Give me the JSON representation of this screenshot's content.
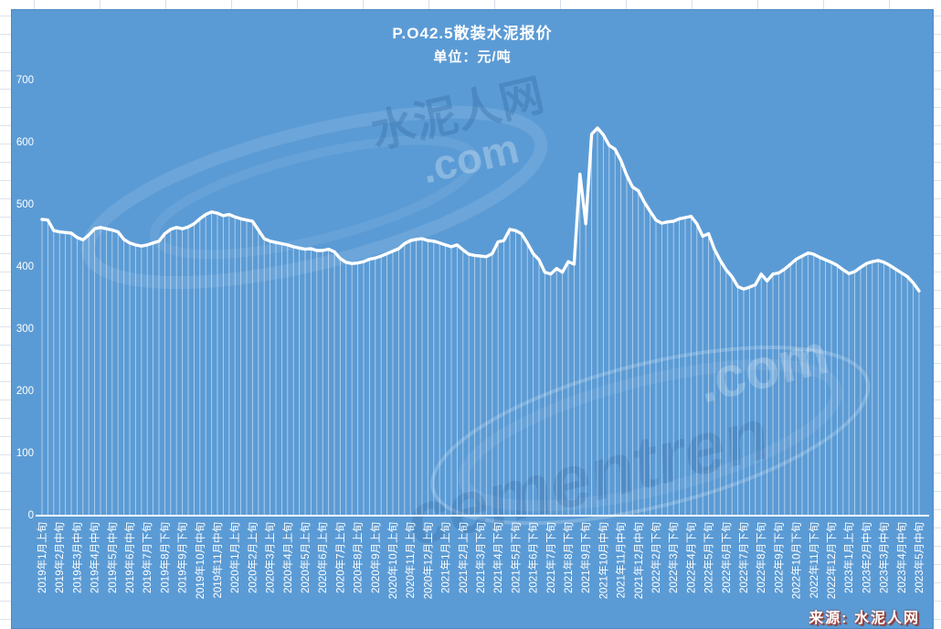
{
  "source_note": "来源: 水泥人网",
  "watermarks": {
    "upper_cn": "水泥人网",
    "upper_com": ".com",
    "lower_latin": "cementren",
    "lower_com": ".com"
  },
  "chart_data": {
    "type": "line",
    "title": "P.O42.5散装水泥报价",
    "subtitle": "单位：元/吨",
    "ylabel": "元/吨",
    "ylim": [
      0,
      700
    ],
    "yticks": [
      0,
      100,
      200,
      300,
      400,
      500,
      600,
      700
    ],
    "grid": false,
    "legend_position": "none",
    "x_label_every_n_points": 3,
    "x_tick_labels": [
      "2019年1月上旬",
      "2019年2月中旬",
      "2019年3月中旬",
      "2019年4月中旬",
      "2019年5月中旬",
      "2019年6月中旬",
      "2019年7月下旬",
      "2019年8月下旬",
      "2019年9月下旬",
      "2019年10月中旬",
      "2019年11月中旬",
      "2020年1月上旬",
      "2020年2月上旬",
      "2020年3月上旬",
      "2020年4月上旬",
      "2020年5月上旬",
      "2020年6月上旬",
      "2020年7月上旬",
      "2020年8月上旬",
      "2020年9月上旬",
      "2020年10月上旬",
      "2020年11月上旬",
      "2020年12月上旬",
      "2021年1月上旬",
      "2021年2月上旬",
      "2021年3月下旬",
      "2021年4月下旬",
      "2021年5月下旬",
      "2021年6月下旬",
      "2021年7月下旬",
      "2021年8月下旬",
      "2021年9月下旬",
      "2021年10月中旬",
      "2021年11月中旬",
      "2021年12月中旬",
      "2022年2月下旬",
      "2022年3月下旬",
      "2022年4月下旬",
      "2022年5月下旬",
      "2022年6月下旬",
      "2022年7月下旬",
      "2022年8月下旬",
      "2022年9月下旬",
      "2022年10月下旬",
      "2022年11月下旬",
      "2022年12月下旬",
      "2023年1月上旬",
      "2023年2月中旬",
      "2023年3月中旬",
      "2023年4月中旬",
      "2023年5月中旬"
    ],
    "series": [
      {
        "name": "P.O42.5散装水泥报价",
        "values": [
          475,
          474,
          457,
          455,
          454,
          453,
          446,
          442,
          450,
          460,
          462,
          460,
          458,
          455,
          443,
          437,
          434,
          432,
          434,
          437,
          440,
          452,
          459,
          462,
          460,
          463,
          468,
          476,
          483,
          487,
          485,
          481,
          483,
          479,
          476,
          474,
          472,
          458,
          444,
          440,
          438,
          436,
          434,
          431,
          429,
          427,
          428,
          425,
          425,
          427,
          423,
          412,
          406,
          404,
          405,
          407,
          411,
          413,
          416,
          420,
          424,
          428,
          436,
          441,
          443,
          444,
          441,
          440,
          437,
          434,
          431,
          434,
          426,
          419,
          417,
          416,
          415,
          420,
          439,
          441,
          459,
          457,
          452,
          437,
          420,
          410,
          390,
          387,
          396,
          390,
          407,
          403,
          548,
          468,
          612,
          622,
          611,
          594,
          588,
          570,
          546,
          527,
          521,
          503,
          488,
          474,
          469,
          471,
          472,
          476,
          478,
          480,
          468,
          448,
          452,
          427,
          409,
          394,
          383,
          367,
          363,
          366,
          370,
          387,
          376,
          387,
          389,
          395,
          403,
          411,
          416,
          421,
          419,
          414,
          410,
          406,
          401,
          394,
          388,
          391,
          398,
          404,
          407,
          409,
          406,
          401,
          395,
          389,
          383,
          373,
          360
        ]
      }
    ],
    "styles": {
      "plot_background": "#5b9bd5",
      "line_color": "#ffffff",
      "drop_line_color": "rgba(255,255,255,0.55)",
      "axis_color": "#ffffff",
      "text_color": "#ffffff"
    }
  }
}
